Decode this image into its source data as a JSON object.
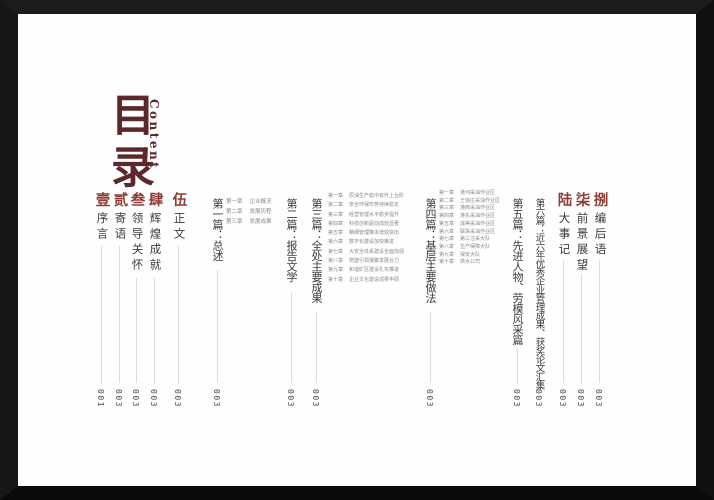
{
  "title": {
    "cn": "目录",
    "en": "Content"
  },
  "colors": {
    "accent_red": "#8e3d35",
    "title_maroon": "#5c282c",
    "body_text": "#3d3b39",
    "chapter_gray": "#8d8a86",
    "line_gray": "#dcdcdc",
    "frame_black": "#101010"
  },
  "entries": [
    {
      "id": "xuYan",
      "kind": "section",
      "num": "壹",
      "text": "序言",
      "page": "001"
    },
    {
      "id": "jiYu",
      "kind": "section",
      "num": "贰",
      "text": "寄语",
      "page": "003"
    },
    {
      "id": "lingDao",
      "kind": "section",
      "num": "叁",
      "text": "领导关怀",
      "page": "003"
    },
    {
      "id": "huiHuang",
      "kind": "section",
      "num": "肆",
      "text": "辉煌成就",
      "page": "003"
    },
    {
      "id": "zhengWen",
      "kind": "section",
      "num": "伍",
      "text": "正文",
      "page": "003"
    },
    {
      "id": "part1",
      "kind": "part",
      "text": "第一篇：总述",
      "page": "003"
    },
    {
      "id": "chapters1",
      "kind": "chapters",
      "rows": [
        {
          "no": "第一章",
          "title": "企业概况"
        },
        {
          "no": "第二章",
          "title": "发展历程"
        },
        {
          "no": "第三章",
          "title": "发展成果"
        }
      ]
    },
    {
      "id": "part2",
      "kind": "part",
      "text": "第二篇：报告文学",
      "page": "003"
    },
    {
      "id": "part3",
      "kind": "part",
      "text": "第三篇：全处主要成果",
      "page": "003"
    },
    {
      "id": "chapters3",
      "kind": "chapters",
      "rows": [
        {
          "no": "第一章",
          "title": "原油生产稳中有升上台阶"
        },
        {
          "no": "第二章",
          "title": "安全环保形势持续稳定"
        },
        {
          "no": "第三章",
          "title": "经营管理水平稳步提升"
        },
        {
          "no": "第四章",
          "title": "科技创新驱动成效显著"
        },
        {
          "no": "第五章",
          "title": "精细管理降本增效突出"
        },
        {
          "no": "第六章",
          "title": "数字化建设加快推进"
        },
        {
          "no": "第七章",
          "title": "大安全体系建设全面加强"
        },
        {
          "no": "第八章",
          "title": "党建引领凝聚发展合力"
        },
        {
          "no": "第九章",
          "title": "和谐矿区建设扎实推进"
        },
        {
          "no": "第十章",
          "title": "企业文化建设成果丰硕"
        }
      ]
    },
    {
      "id": "part4",
      "kind": "part",
      "text": "第四篇：基层主要做法",
      "page": "003"
    },
    {
      "id": "chapters4",
      "kind": "chapters",
      "rows": [
        {
          "no": "第一章",
          "title": "港河采油作业区"
        },
        {
          "no": "第二章",
          "title": "王徐庄采油作业区"
        },
        {
          "no": "第三章",
          "title": "港西采油作业区"
        },
        {
          "no": "第四章",
          "title": "港东采油作业区"
        },
        {
          "no": "第五章",
          "title": "成美采油作业区"
        },
        {
          "no": "第六章",
          "title": "联珠采油作业区"
        },
        {
          "no": "第七章",
          "title": "第三注采大队"
        },
        {
          "no": "第八章",
          "title": "生产保障大队"
        },
        {
          "no": "第九章",
          "title": "保安大队"
        },
        {
          "no": "第十章",
          "title": "供水公司"
        }
      ]
    },
    {
      "id": "part5",
      "kind": "part",
      "text": "第五篇：先进人物、劳模风采篇",
      "page": "003"
    },
    {
      "id": "part6",
      "kind": "part",
      "long": true,
      "text": "第六篇：近六年优秀企业管理成果、获奖论文汇集",
      "page": "003"
    },
    {
      "id": "daShiJi",
      "kind": "section",
      "num": "陆",
      "text": "大事记",
      "page": "003"
    },
    {
      "id": "qianJing",
      "kind": "section",
      "num": "柒",
      "text": "前景展望",
      "page": "003"
    },
    {
      "id": "bianHouYu",
      "kind": "section",
      "num": "捌",
      "text": "编后语",
      "page": "003"
    }
  ]
}
